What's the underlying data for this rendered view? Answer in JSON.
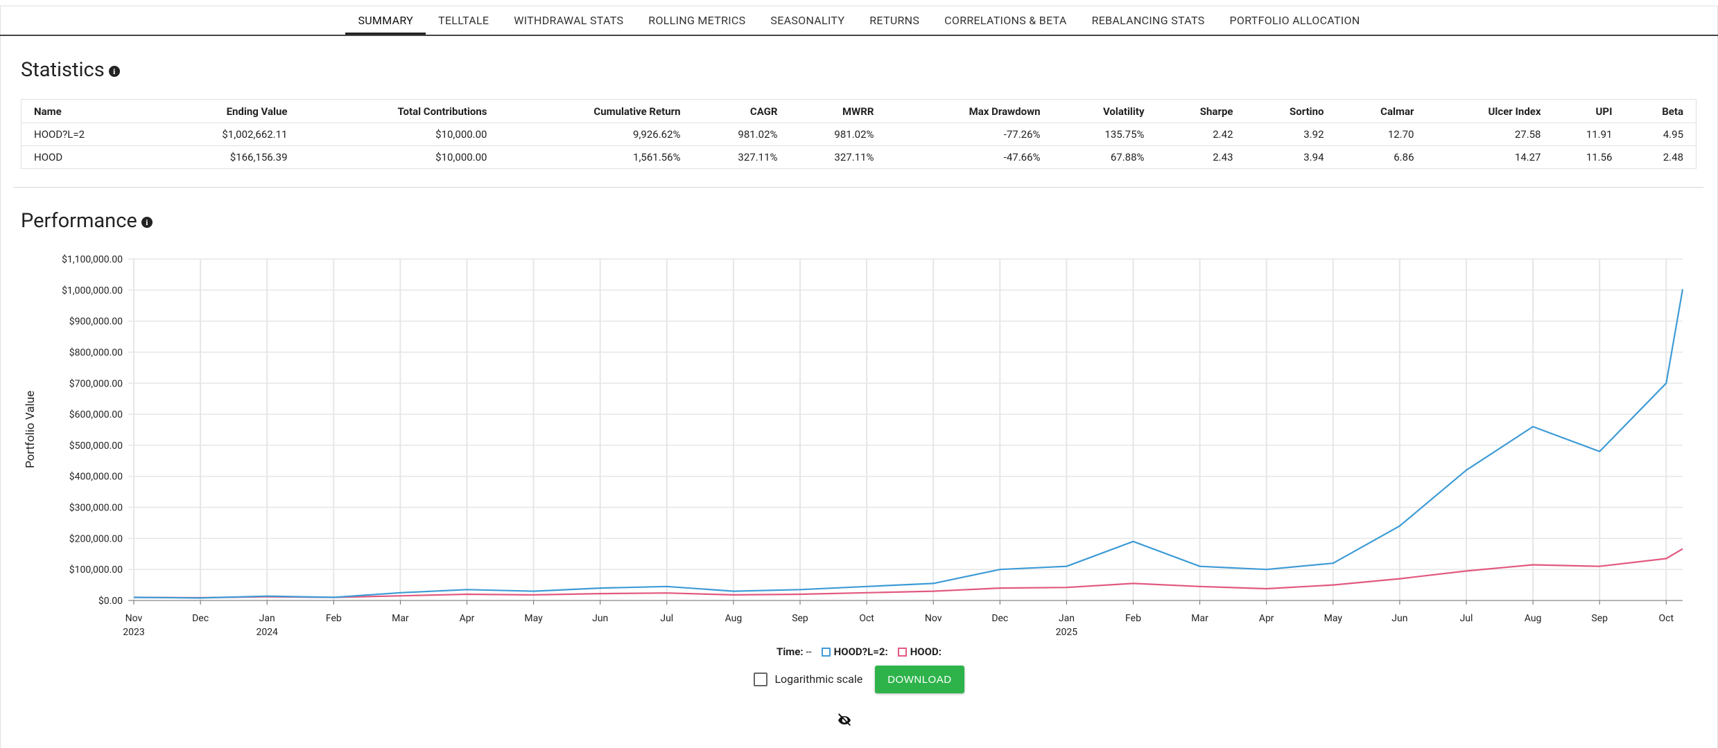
{
  "tabs": [
    "SUMMARY",
    "TELLTALE",
    "WITHDRAWAL STATS",
    "ROLLING METRICS",
    "SEASONALITY",
    "RETURNS",
    "CORRELATIONS & BETA",
    "REBALANCING STATS",
    "PORTFOLIO ALLOCATION"
  ],
  "statistics": {
    "title": "Statistics",
    "table": {
      "columns": [
        "Name",
        "Ending Value",
        "Total Contributions",
        "Cumulative Return",
        "CAGR",
        "MWRR",
        "Max Drawdown",
        "Volatility",
        "Sharpe",
        "Sortino",
        "Calmar",
        "Ulcer Index",
        "UPI",
        "Beta"
      ],
      "rows": [
        [
          "HOOD?L=2",
          "$1,002,662.11",
          "$10,000.00",
          "9,926.62%",
          "981.02%",
          "981.02%",
          "-77.26%",
          "135.75%",
          "2.42",
          "3.92",
          "12.70",
          "27.58",
          "11.91",
          "4.95"
        ],
        [
          "HOOD",
          "$166,156.39",
          "$10,000.00",
          "1,561.56%",
          "327.11%",
          "327.11%",
          "-47.66%",
          "67.88%",
          "2.43",
          "3.94",
          "6.86",
          "14.27",
          "11.56",
          "2.48"
        ]
      ]
    }
  },
  "performance": {
    "title": "Performance"
  },
  "chart_data": {
    "type": "line",
    "y_label": "Portfolio Value",
    "log_scale": false,
    "grid": true,
    "hover_label": "Time:",
    "hover_value": "--",
    "categories": [
      "Nov 2023",
      "Dec",
      "Jan 2024",
      "Feb",
      "Mar",
      "Apr",
      "May",
      "Jun",
      "Jul",
      "Aug",
      "Sep",
      "Oct",
      "Nov",
      "Dec",
      "Jan 2025",
      "Feb",
      "Mar",
      "Apr",
      "May",
      "Jun",
      "Jul",
      "Aug",
      "Sep",
      "Oct",
      null
    ],
    "series": [
      {
        "name": "HOOD?L=2:",
        "color": "#3d9bd6",
        "values": [
          10000,
          8000,
          14000,
          10000,
          25000,
          35000,
          30000,
          40000,
          45000,
          30000,
          35000,
          45000,
          55000,
          100000,
          110000,
          190000,
          110000,
          100000,
          120000,
          240000,
          420000,
          560000,
          480000,
          700000,
          1002662.11
        ]
      },
      {
        "name": "HOOD:",
        "color": "#e2587f",
        "values": [
          10000,
          9000,
          12000,
          10000,
          15000,
          20000,
          18000,
          22000,
          24000,
          18000,
          20000,
          25000,
          30000,
          40000,
          42000,
          55000,
          45000,
          38000,
          50000,
          70000,
          95000,
          115000,
          110000,
          135000,
          166156.39
        ]
      }
    ],
    "ylim": [
      0,
      1100000
    ],
    "yticks": [
      {
        "value": 0,
        "label": "$0.00"
      },
      {
        "value": 100000,
        "label": "$100,000.00"
      },
      {
        "value": 200000,
        "label": "$200,000.00"
      },
      {
        "value": 300000,
        "label": "$300,000.00"
      },
      {
        "value": 400000,
        "label": "$400,000.00"
      },
      {
        "value": 500000,
        "label": "$500,000.00"
      },
      {
        "value": 600000,
        "label": "$600,000.00"
      },
      {
        "value": 700000,
        "label": "$700,000.00"
      },
      {
        "value": 800000,
        "label": "$800,000.00"
      },
      {
        "value": 900000,
        "label": "$900,000.00"
      },
      {
        "value": 1000000,
        "label": "$1,000,000.00"
      },
      {
        "value": 1100000,
        "label": "$1,100,000.00"
      }
    ]
  },
  "controls": {
    "log_label": "Logarithmic scale",
    "download": "DOWNLOAD"
  }
}
